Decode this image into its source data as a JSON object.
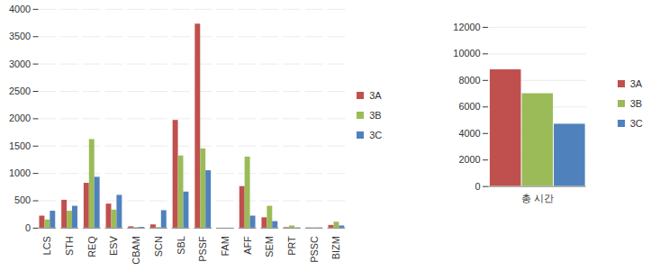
{
  "chart_data": [
    {
      "type": "bar",
      "categories": [
        "LCS",
        "STH",
        "REQ",
        "ESV",
        "CBAM",
        "SCN",
        "SBL",
        "PSSF",
        "FAM",
        "AFF",
        "SEM",
        "PRT",
        "PSSC",
        "BIZM"
      ],
      "series": [
        {
          "name": "3A",
          "color": "#c0504d",
          "values": [
            220,
            510,
            820,
            440,
            25,
            60,
            1970,
            3730,
            0,
            760,
            190,
            10,
            5,
            50
          ]
        },
        {
          "name": "3B",
          "color": "#9bbb59",
          "values": [
            150,
            310,
            1620,
            330,
            10,
            10,
            1320,
            1450,
            0,
            1300,
            400,
            40,
            5,
            110
          ]
        },
        {
          "name": "3C",
          "color": "#4f81bd",
          "values": [
            310,
            400,
            930,
            600,
            15,
            320,
            660,
            1050,
            0,
            220,
            120,
            5,
            5,
            40
          ]
        }
      ],
      "ylim": [
        0,
        4000
      ],
      "yticks": [
        0,
        500,
        1000,
        1500,
        2000,
        2500,
        3000,
        3500,
        4000
      ],
      "grid": true,
      "legend": "right"
    },
    {
      "type": "bar",
      "categories": [
        "총 시간"
      ],
      "series": [
        {
          "name": "3A",
          "color": "#c0504d",
          "values": [
            8800
          ]
        },
        {
          "name": "3B",
          "color": "#9bbb59",
          "values": [
            7000
          ]
        },
        {
          "name": "3C",
          "color": "#4f81bd",
          "values": [
            4700
          ]
        }
      ],
      "ylim": [
        0,
        12000
      ],
      "yticks": [
        0,
        2000,
        4000,
        6000,
        8000,
        10000,
        12000
      ],
      "grid": true,
      "legend": "right"
    }
  ]
}
